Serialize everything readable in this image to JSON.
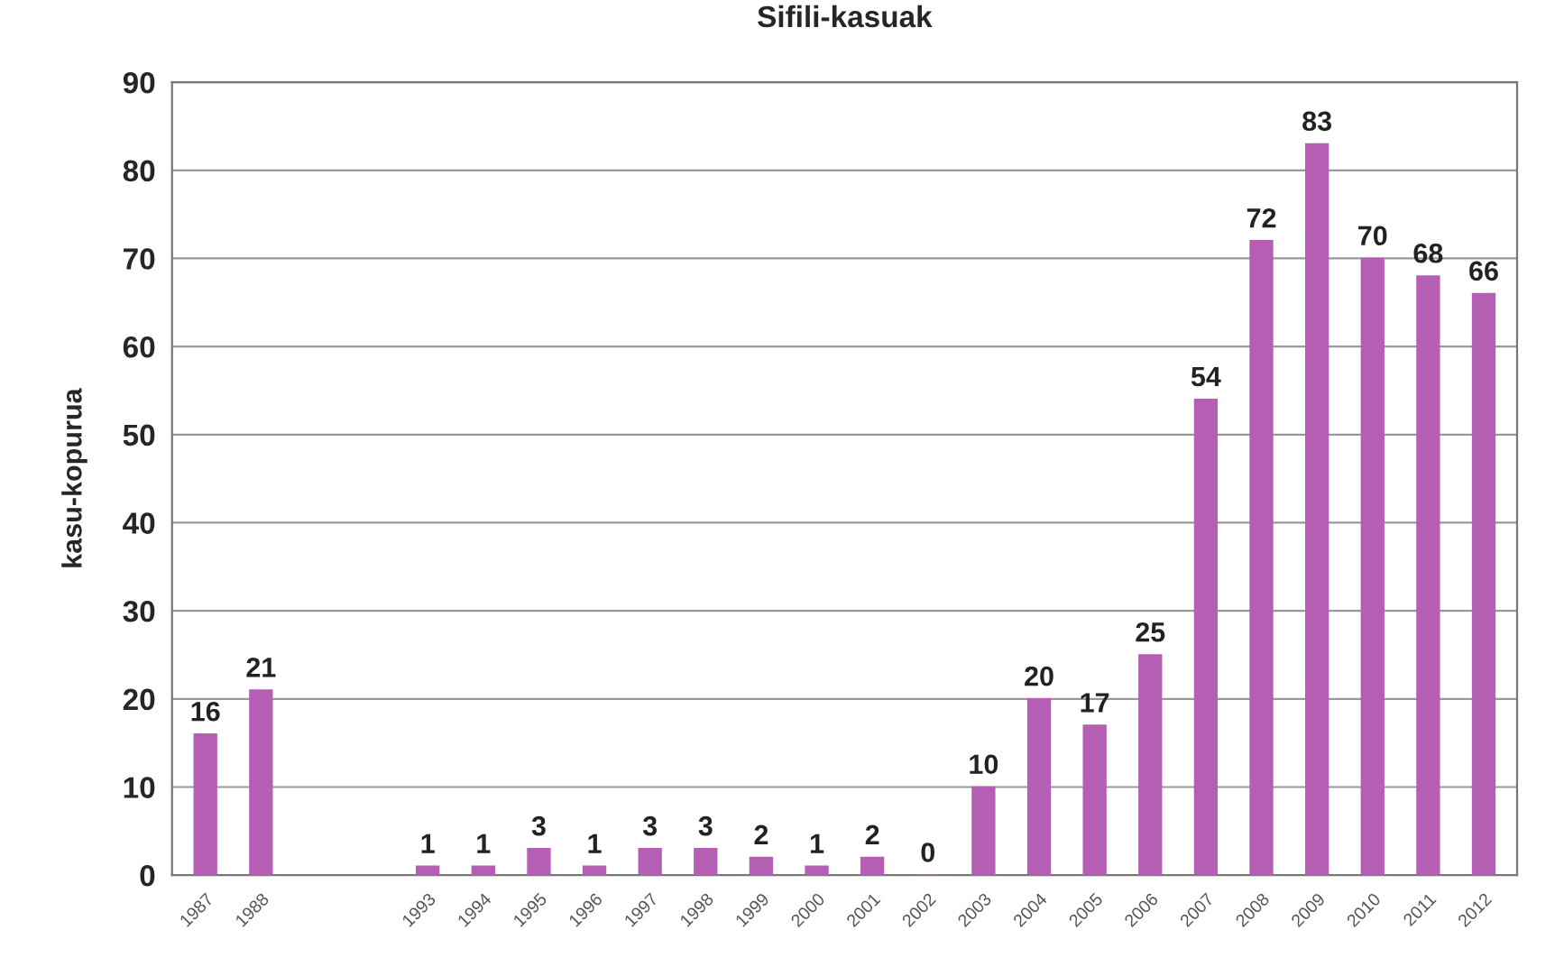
{
  "chart_data": {
    "type": "bar",
    "title": "Sifili-kasuak",
    "ylabel": "kasu-kopurua",
    "categories": [
      "1987",
      "1988",
      null,
      null,
      "1993",
      "1994",
      "1995",
      "1996",
      "1997",
      "1998",
      "1999",
      "2000",
      "2001",
      "2002",
      "2003",
      "2004",
      "2005",
      "2006",
      "2007",
      "2008",
      "2009",
      "2010",
      "2011",
      "2012"
    ],
    "values": [
      16,
      21,
      null,
      null,
      1,
      1,
      3,
      1,
      3,
      3,
      2,
      1,
      2,
      0,
      10,
      20,
      17,
      25,
      54,
      72,
      83,
      70,
      68,
      66
    ],
    "color": "#b45fb4",
    "ylim": [
      0,
      90
    ],
    "yticks": [
      0,
      10,
      20,
      30,
      40,
      50,
      60,
      70,
      80,
      90
    ],
    "grid": "y",
    "data_labels": true
  }
}
